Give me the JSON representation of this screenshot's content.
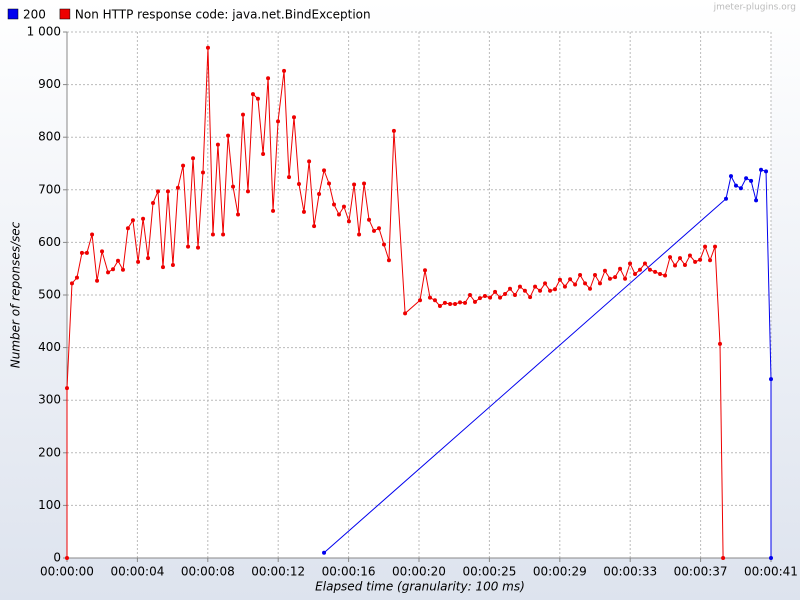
{
  "chart_data": {
    "type": "line",
    "watermark": "jmeter-plugins.org",
    "xlabel": "Elapsed time (granularity: 100 ms)",
    "ylabel": "Number of reponses/sec",
    "xlim": [
      0,
      41
    ],
    "ylim": [
      0,
      1000
    ],
    "yticks": [
      0,
      100,
      200,
      300,
      400,
      500,
      600,
      700,
      800,
      900,
      {
        "value": 1000,
        "label": "1 000"
      }
    ],
    "xticks": [
      {
        "value": 0,
        "label": "00:00:00"
      },
      {
        "value": 4.1,
        "label": "00:00:04"
      },
      {
        "value": 8.2,
        "label": "00:00:08"
      },
      {
        "value": 12.3,
        "label": "00:00:12"
      },
      {
        "value": 16.4,
        "label": "00:00:16"
      },
      {
        "value": 20.5,
        "label": "00:00:20"
      },
      {
        "value": 24.6,
        "label": "00:00:25"
      },
      {
        "value": 28.7,
        "label": "00:00:29"
      },
      {
        "value": 32.8,
        "label": "00:00:33"
      },
      {
        "value": 36.9,
        "label": "00:00:37"
      },
      {
        "value": 41,
        "label": "00:00:41"
      }
    ],
    "grid": true,
    "series": [
      {
        "name": "200",
        "color": "#0000ee",
        "x": [
          14.97,
          38.38,
          38.67,
          38.96,
          39.25,
          39.55,
          39.84,
          40.13,
          40.42,
          40.71,
          41.0,
          41.0
        ],
        "values": [
          10,
          683,
          726,
          708,
          703,
          722,
          717,
          680,
          738,
          735,
          340,
          0
        ]
      },
      {
        "name": "Non HTTP response code: java.net.BindException",
        "color": "#ee0000",
        "x": [
          0,
          0,
          0.29,
          0.58,
          0.87,
          1.16,
          1.46,
          1.75,
          2.04,
          2.39,
          2.68,
          2.97,
          3.26,
          3.55,
          3.84,
          4.14,
          4.43,
          4.72,
          5.01,
          5.3,
          5.59,
          5.88,
          6.17,
          6.46,
          6.76,
          7.05,
          7.34,
          7.63,
          7.92,
          8.21,
          8.5,
          8.79,
          9.09,
          9.38,
          9.67,
          9.96,
          10.25,
          10.54,
          10.83,
          11.12,
          11.42,
          11.71,
          12.0,
          12.29,
          12.64,
          12.93,
          13.22,
          13.51,
          13.8,
          14.1,
          14.39,
          14.68,
          14.97,
          15.26,
          15.55,
          15.84,
          16.13,
          16.42,
          16.72,
          17.01,
          17.3,
          17.59,
          17.88,
          18.17,
          18.46,
          18.75,
          19.04,
          19.69,
          20.56,
          20.85,
          21.14,
          21.43,
          21.72,
          22.01,
          22.31,
          22.6,
          22.89,
          23.18,
          23.47,
          23.76,
          24.05,
          24.34,
          24.64,
          24.93,
          25.22,
          25.51,
          25.8,
          26.09,
          26.38,
          26.67,
          26.97,
          27.26,
          27.55,
          27.84,
          28.13,
          28.42,
          28.71,
          29.0,
          29.3,
          29.59,
          29.88,
          30.17,
          30.46,
          30.75,
          31.04,
          31.33,
          31.62,
          31.92,
          32.21,
          32.5,
          32.79,
          33.08,
          33.37,
          33.66,
          33.95,
          34.25,
          34.54,
          34.83,
          35.12,
          35.41,
          35.7,
          35.99,
          36.28,
          36.58,
          36.87,
          37.16,
          37.45,
          37.74,
          38.03,
          38.21
        ],
        "values": [
          0,
          323,
          522,
          533,
          580,
          580,
          615,
          527,
          583,
          543,
          549,
          565,
          548,
          627,
          642,
          563,
          645,
          570,
          675,
          697,
          553,
          697,
          557,
          704,
          746,
          592,
          760,
          590,
          733,
          970,
          615,
          786,
          615,
          803,
          706,
          653,
          843,
          697,
          882,
          873,
          768,
          912,
          660,
          830,
          926,
          724,
          838,
          711,
          658,
          754,
          631,
          692,
          737,
          712,
          672,
          653,
          668,
          640,
          710,
          615,
          712,
          643,
          622,
          627,
          596,
          566,
          812,
          465,
          490,
          547,
          495,
          490,
          479,
          485,
          483,
          483,
          486,
          485,
          500,
          487,
          494,
          498,
          495,
          506,
          495,
          502,
          512,
          500,
          516,
          508,
          496,
          516,
          508,
          522,
          508,
          511,
          529,
          516,
          530,
          520,
          538,
          522,
          512,
          538,
          522,
          546,
          531,
          534,
          550,
          531,
          560,
          540,
          548,
          560,
          548,
          544,
          540,
          537,
          572,
          556,
          570,
          557,
          575,
          563,
          567,
          592,
          566,
          592,
          407,
          0
        ]
      }
    ]
  }
}
